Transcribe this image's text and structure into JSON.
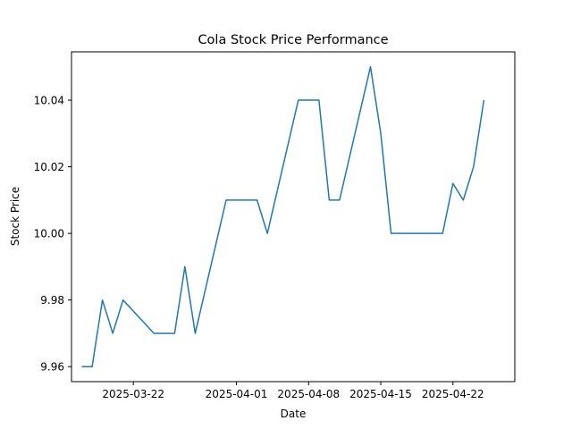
{
  "chart_data": {
    "type": "line",
    "title": "Cola Stock Price Performance",
    "xlabel": "Date",
    "ylabel": "Stock Price",
    "x_ticks": [
      "2025-03-22",
      "2025-04-01",
      "2025-04-08",
      "2025-04-15",
      "2025-04-22"
    ],
    "y_ticks": [
      "9.96",
      "9.98",
      "10.00",
      "10.02",
      "10.04"
    ],
    "xlim": [
      "2025-03-16",
      "2025-04-28"
    ],
    "ylim": [
      9.9555,
      10.0545
    ],
    "grid": false,
    "legend": "none",
    "series": [
      {
        "color": "#1f77b4",
        "x": [
          "2025-03-17",
          "2025-03-18",
          "2025-03-19",
          "2025-03-20",
          "2025-03-21",
          "2025-03-24",
          "2025-03-25",
          "2025-03-26",
          "2025-03-27",
          "2025-03-28",
          "2025-03-31",
          "2025-04-01",
          "2025-04-02",
          "2025-04-03",
          "2025-04-04",
          "2025-04-07",
          "2025-04-08",
          "2025-04-09",
          "2025-04-10",
          "2025-04-11",
          "2025-04-14",
          "2025-04-15",
          "2025-04-16",
          "2025-04-17",
          "2025-04-21",
          "2025-04-22",
          "2025-04-23",
          "2025-04-24",
          "2025-04-25"
        ],
        "values": [
          9.96,
          9.96,
          9.98,
          9.97,
          9.98,
          9.97,
          9.97,
          9.97,
          9.99,
          9.97,
          10.01,
          10.01,
          10.01,
          10.01,
          10.0,
          10.04,
          10.04,
          10.04,
          10.01,
          10.01,
          10.05,
          10.03,
          10.0,
          10.0,
          10.0,
          10.015,
          10.01,
          10.02,
          10.04
        ]
      }
    ]
  }
}
